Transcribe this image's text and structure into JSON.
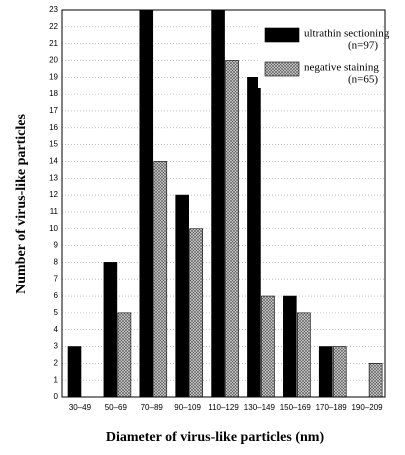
{
  "chart_data": {
    "type": "bar",
    "x_label": "Diameter of virus-like particles (nm)",
    "y_label": "Number of virus-like particles",
    "categories": [
      "30–49",
      "50–69",
      "70–89",
      "90–109",
      "110–129",
      "130–149",
      "150–169",
      "170–189",
      "190–209"
    ],
    "series": [
      {
        "name": "ultrathin sectioning",
        "n_label": "(n=97)",
        "color": "#000000",
        "values": [
          3,
          8,
          23,
          12,
          23,
          19,
          6,
          3,
          0
        ]
      },
      {
        "name": "negative staining",
        "n_label": "(n=65)",
        "color": "#a6a6a6",
        "values": [
          0,
          5,
          14,
          10,
          20,
          6,
          5,
          3,
          2
        ]
      }
    ],
    "ylim": [
      0,
      23
    ],
    "yticks": [
      0,
      1,
      2,
      3,
      4,
      5,
      6,
      7,
      8,
      9,
      10,
      11,
      12,
      13,
      14,
      15,
      16,
      17,
      18,
      19,
      20,
      21,
      22,
      23
    ],
    "grid": true
  }
}
